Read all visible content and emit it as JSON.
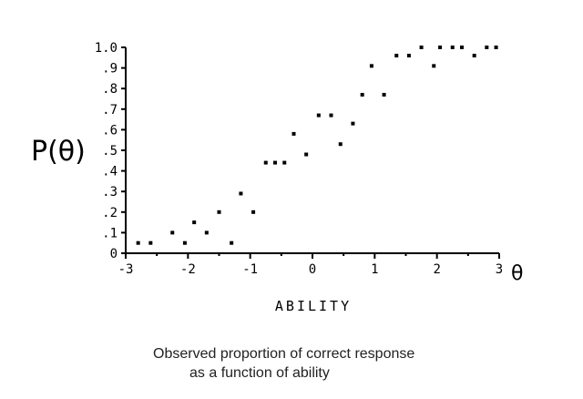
{
  "chart_data": {
    "type": "scatter",
    "ylabel": "P(θ)",
    "xlabel": "ABILITY",
    "x_axis_symbol": "θ",
    "caption": [
      "Observed proportion of correct response",
      "as a function of ability"
    ],
    "xlim": [
      -3,
      3
    ],
    "ylim": [
      0,
      1.0
    ],
    "x_ticks": [
      -3,
      -2,
      -1,
      0,
      1,
      2,
      3
    ],
    "x_tick_labels": [
      "-3",
      "-2",
      "-1",
      "0",
      "1",
      "2",
      "3"
    ],
    "y_ticks": [
      0,
      0.1,
      0.2,
      0.3,
      0.4,
      0.5,
      0.6,
      0.7,
      0.8,
      0.9,
      1.0
    ],
    "y_tick_labels": [
      "0",
      ".1",
      ".2",
      ".3",
      ".4",
      ".5",
      ".6",
      ".7",
      ".8",
      ".9",
      "1.0"
    ],
    "grid": false,
    "color": "#000000",
    "points": [
      {
        "x": -2.8,
        "y": 0.05
      },
      {
        "x": -2.6,
        "y": 0.05
      },
      {
        "x": -2.25,
        "y": 0.1
      },
      {
        "x": -2.05,
        "y": 0.05
      },
      {
        "x": -1.9,
        "y": 0.15
      },
      {
        "x": -1.7,
        "y": 0.1
      },
      {
        "x": -1.5,
        "y": 0.2
      },
      {
        "x": -1.3,
        "y": 0.05
      },
      {
        "x": -1.15,
        "y": 0.29
      },
      {
        "x": -0.95,
        "y": 0.2
      },
      {
        "x": -0.75,
        "y": 0.44
      },
      {
        "x": -0.6,
        "y": 0.44
      },
      {
        "x": -0.45,
        "y": 0.44
      },
      {
        "x": -0.3,
        "y": 0.58
      },
      {
        "x": -0.1,
        "y": 0.48
      },
      {
        "x": 0.1,
        "y": 0.67
      },
      {
        "x": 0.3,
        "y": 0.67
      },
      {
        "x": 0.45,
        "y": 0.53
      },
      {
        "x": 0.65,
        "y": 0.63
      },
      {
        "x": 0.8,
        "y": 0.77
      },
      {
        "x": 0.95,
        "y": 0.91
      },
      {
        "x": 1.15,
        "y": 0.77
      },
      {
        "x": 1.35,
        "y": 0.96
      },
      {
        "x": 1.55,
        "y": 0.96
      },
      {
        "x": 1.75,
        "y": 1.0
      },
      {
        "x": 1.95,
        "y": 0.91
      },
      {
        "x": 2.05,
        "y": 1.0
      },
      {
        "x": 2.25,
        "y": 1.0
      },
      {
        "x": 2.4,
        "y": 1.0
      },
      {
        "x": 2.6,
        "y": 0.96
      },
      {
        "x": 2.8,
        "y": 1.0
      },
      {
        "x": 2.95,
        "y": 1.0
      }
    ]
  }
}
